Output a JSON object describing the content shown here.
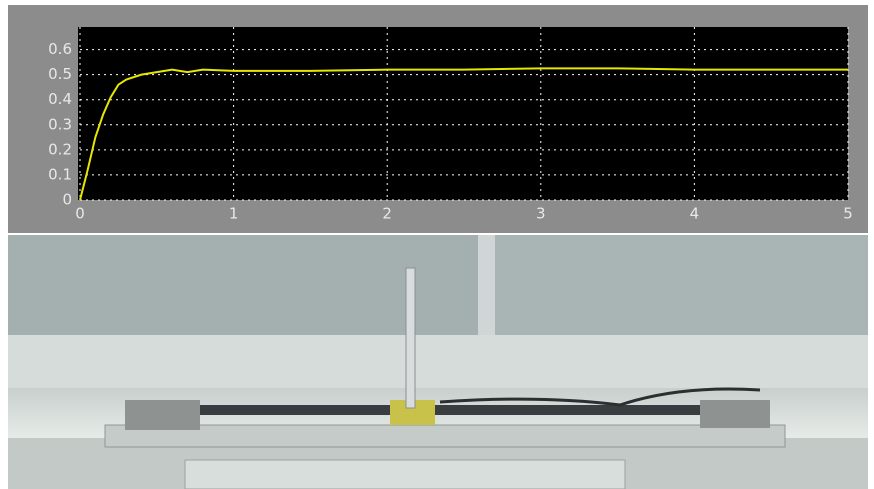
{
  "chart_data": {
    "type": "line",
    "x": [
      0,
      0.05,
      0.1,
      0.15,
      0.2,
      0.25,
      0.3,
      0.4,
      0.5,
      0.6,
      0.7,
      0.8,
      1,
      1.5,
      2,
      2.5,
      3,
      3.5,
      4,
      4.5,
      5
    ],
    "series": [
      {
        "color": "#e6e600",
        "values": [
          0,
          0.12,
          0.25,
          0.34,
          0.41,
          0.46,
          0.48,
          0.5,
          0.51,
          0.52,
          0.51,
          0.52,
          0.515,
          0.515,
          0.52,
          0.52,
          0.525,
          0.525,
          0.52,
          0.52,
          0.52
        ]
      }
    ],
    "xlim": [
      0,
      5
    ],
    "xticks": [
      0,
      1,
      2,
      3,
      4,
      5
    ],
    "ylim": [
      0,
      0.69
    ],
    "yticks": [
      0,
      0.1,
      0.2,
      0.3,
      0.4,
      0.5,
      0.6
    ],
    "grid": true
  }
}
